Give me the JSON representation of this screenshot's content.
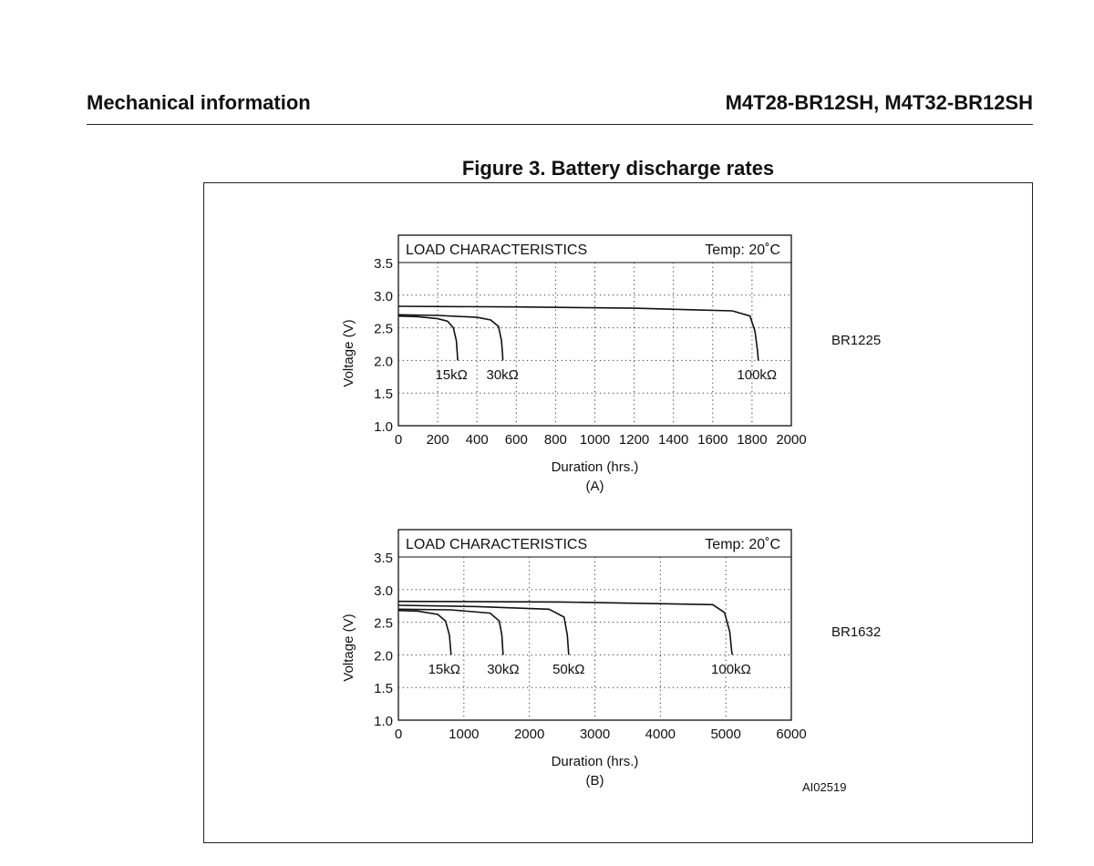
{
  "header": {
    "section": "Mechanical information",
    "part_numbers": "M4T28-BR12SH, M4T32-BR12SH"
  },
  "figure": {
    "title": "Figure 3. Battery discharge rates",
    "code": "AI02519"
  },
  "chart_data": [
    {
      "type": "line",
      "title": "LOAD CHARACTERISTICS",
      "annotation": "Temp: 20˚C",
      "battery": "BR1225",
      "sublabel": "(A)",
      "xlabel": "Duration (hrs.)",
      "ylabel": "Voltage (V)",
      "xlim": [
        0,
        2000
      ],
      "ylim": [
        1.0,
        3.5
      ],
      "xticks": [
        "0",
        "200",
        "400",
        "600",
        "800",
        "1000",
        "1200",
        "1400",
        "1600",
        "1800",
        "2000"
      ],
      "yticks": [
        "1.0",
        "1.5",
        "2.0",
        "2.5",
        "3.0",
        "3.5"
      ],
      "grid": true,
      "series": [
        {
          "name": "15kΩ",
          "label_x": 270,
          "label_y": 1.78,
          "x": [
            0,
            100,
            200,
            250,
            280,
            295,
            300,
            302
          ],
          "y": [
            2.68,
            2.67,
            2.64,
            2.6,
            2.5,
            2.3,
            2.1,
            2.0
          ]
        },
        {
          "name": "30kΩ",
          "label_x": 530,
          "label_y": 1.78,
          "x": [
            0,
            200,
            400,
            470,
            510,
            525,
            530,
            532
          ],
          "y": [
            2.7,
            2.69,
            2.66,
            2.62,
            2.52,
            2.3,
            2.1,
            2.0
          ]
        },
        {
          "name": "100kΩ",
          "label_x": 1825,
          "label_y": 1.78,
          "x": [
            0,
            600,
            1200,
            1700,
            1790,
            1815,
            1828,
            1832
          ],
          "y": [
            2.83,
            2.82,
            2.8,
            2.76,
            2.68,
            2.45,
            2.15,
            2.0
          ]
        }
      ]
    },
    {
      "type": "line",
      "title": "LOAD CHARACTERISTICS",
      "annotation": "Temp: 20˚C",
      "battery": "BR1632",
      "sublabel": "(B)",
      "xlabel": "Duration (hrs.)",
      "ylabel": "Voltage (V)",
      "xlim": [
        0,
        6000
      ],
      "ylim": [
        1.0,
        3.5
      ],
      "xticks": [
        "0",
        "1000",
        "2000",
        "3000",
        "4000",
        "5000",
        "6000"
      ],
      "yticks": [
        "1.0",
        "1.5",
        "2.0",
        "2.5",
        "3.0",
        "3.5"
      ],
      "grid": true,
      "series": [
        {
          "name": "15kΩ",
          "label_x": 700,
          "label_y": 1.78,
          "x": [
            0,
            300,
            600,
            720,
            780,
            800,
            805
          ],
          "y": [
            2.68,
            2.67,
            2.62,
            2.52,
            2.3,
            2.05,
            2.0
          ]
        },
        {
          "name": "30kΩ",
          "label_x": 1600,
          "label_y": 1.78,
          "x": [
            0,
            800,
            1400,
            1540,
            1580,
            1595,
            1600
          ],
          "y": [
            2.7,
            2.69,
            2.64,
            2.52,
            2.3,
            2.05,
            2.0
          ]
        },
        {
          "name": "50kΩ",
          "label_x": 2600,
          "label_y": 1.78,
          "x": [
            0,
            1200,
            2300,
            2530,
            2580,
            2597,
            2600
          ],
          "y": [
            2.76,
            2.74,
            2.7,
            2.58,
            2.3,
            2.05,
            2.0
          ]
        },
        {
          "name": "100kΩ",
          "label_x": 5080,
          "label_y": 1.78,
          "x": [
            0,
            2500,
            4800,
            4980,
            5060,
            5090,
            5100
          ],
          "y": [
            2.82,
            2.81,
            2.77,
            2.65,
            2.35,
            2.05,
            2.0
          ]
        }
      ]
    }
  ]
}
